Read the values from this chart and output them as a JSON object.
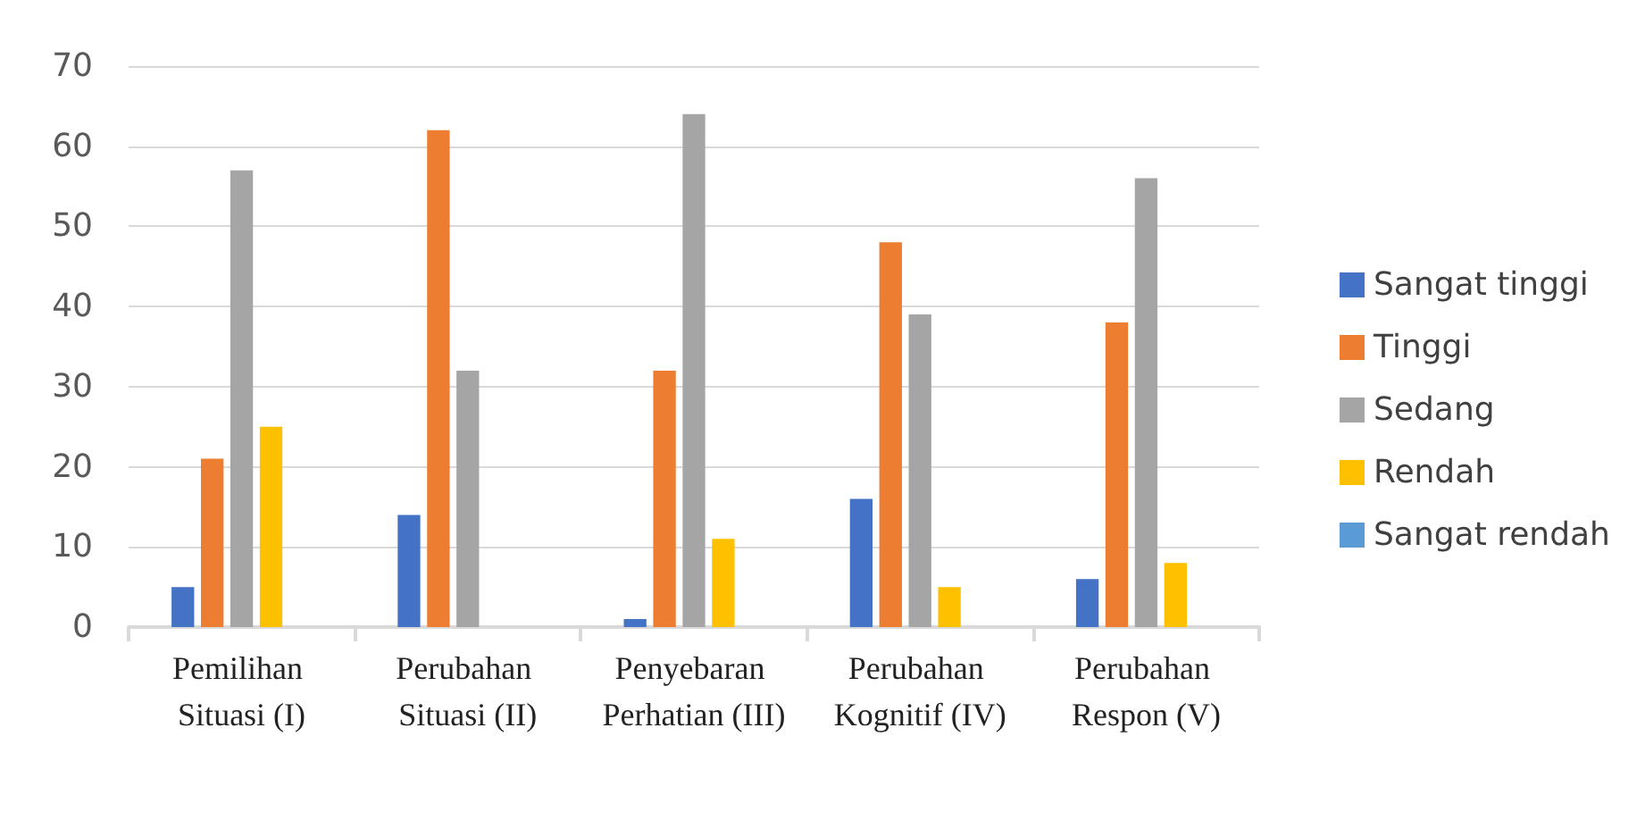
{
  "chart_data": {
    "type": "bar",
    "categories": [
      "Pemilihan Situasi (I)",
      "Perubahan Situasi (II)",
      "Penyebaran Perhatian (III)",
      "Perubahan Kognitif (IV)",
      "Perubahan Respon (V)"
    ],
    "series": [
      {
        "name": "Sangat tinggi",
        "color": "#4472c4",
        "values": [
          5,
          14,
          1,
          16,
          6
        ]
      },
      {
        "name": "Tinggi",
        "color": "#ed7d31",
        "values": [
          21,
          62,
          32,
          48,
          38
        ]
      },
      {
        "name": "Sedang",
        "color": "#a5a5a5",
        "values": [
          57,
          32,
          64,
          39,
          56
        ]
      },
      {
        "name": "Rendah",
        "color": "#ffc000",
        "values": [
          25,
          0,
          11,
          5,
          8
        ]
      },
      {
        "name": "Sangat rendah",
        "color": "#5b9bd5",
        "values": [
          0,
          0,
          0,
          0,
          0
        ]
      }
    ],
    "ylim": [
      0,
      70
    ],
    "yticks": [
      0,
      10,
      20,
      30,
      40,
      50,
      60,
      70
    ],
    "grid": "y",
    "legend": "right"
  }
}
